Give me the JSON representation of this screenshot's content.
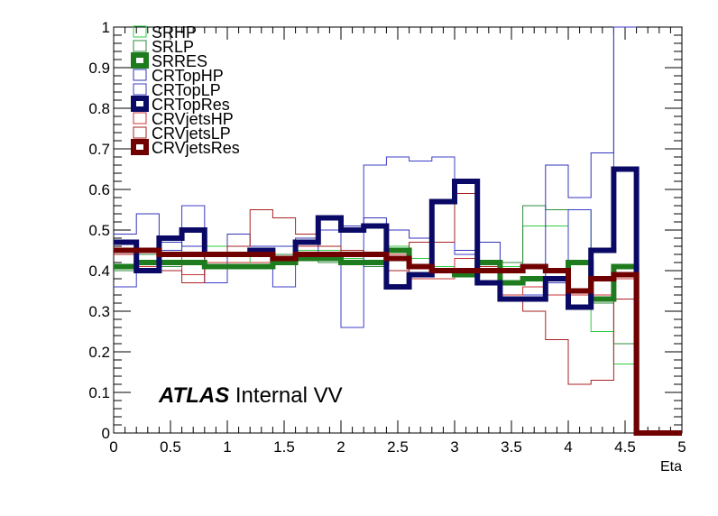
{
  "chart_data": {
    "type": "line",
    "xlabel": "Eta",
    "ylabel": "",
    "xlim": [
      0,
      5
    ],
    "ylim": [
      0,
      1
    ],
    "x_ticks": [
      "0",
      "0.5",
      "1",
      "1.5",
      "2",
      "2.5",
      "3",
      "3.5",
      "4",
      "4.5",
      "5"
    ],
    "y_ticks": [
      "0",
      "0.1",
      "0.2",
      "0.3",
      "0.4",
      "0.5",
      "0.6",
      "0.7",
      "0.8",
      "0.9",
      "1"
    ],
    "bin_edges": [
      0,
      0.2,
      0.4,
      0.6,
      0.8,
      1.0,
      1.2,
      1.4,
      1.6,
      1.8,
      2.0,
      2.2,
      2.4,
      2.6,
      2.8,
      3.0,
      3.2,
      3.4,
      3.6,
      3.8,
      4.0,
      4.2,
      4.4,
      4.6
    ],
    "legend_position": "top-left",
    "grid": false,
    "series": [
      {
        "name": "SRHP",
        "color": "#2ecc40",
        "width": 1,
        "values": [
          0.44,
          0.42,
          0.47,
          0.44,
          0.46,
          0.42,
          0.44,
          0.43,
          0.45,
          0.45,
          0.43,
          0.42,
          0.46,
          0.43,
          0.41,
          0.4,
          0.42,
          0.41,
          0.51,
          0.51,
          0.55,
          0.25,
          0.17
        ]
      },
      {
        "name": "SRLP",
        "color": "#2e8b3c",
        "width": 1,
        "values": [
          0.4,
          0.44,
          0.41,
          0.44,
          0.41,
          0.42,
          0.42,
          0.44,
          0.43,
          0.42,
          0.42,
          0.41,
          0.43,
          0.41,
          0.4,
          0.39,
          0.4,
          0.42,
          0.56,
          0.55,
          0.35,
          0.32,
          0.22
        ]
      },
      {
        "name": "SRRES",
        "color": "#1e7b1e",
        "width": 6,
        "values": [
          0.41,
          0.42,
          0.42,
          0.42,
          0.41,
          0.41,
          0.41,
          0.42,
          0.43,
          0.43,
          0.42,
          0.42,
          0.45,
          0.41,
          0.4,
          0.39,
          0.42,
          0.37,
          0.38,
          0.38,
          0.42,
          0.33,
          0.41
        ]
      },
      {
        "name": "CRTopHP",
        "color": "#3333bb",
        "width": 1,
        "values": [
          0.49,
          0.54,
          0.47,
          0.46,
          0.44,
          0.49,
          0.46,
          0.46,
          0.48,
          0.5,
          0.51,
          0.53,
          0.5,
          0.48,
          0.47,
          0.45,
          0.47,
          0.33,
          0.33,
          0.66,
          0.58,
          0.69,
          1.0
        ]
      },
      {
        "name": "CRTopLP",
        "color": "#3c3cc8",
        "width": 1,
        "values": [
          0.36,
          0.4,
          0.45,
          0.56,
          0.37,
          0.44,
          0.45,
          0.36,
          0.43,
          0.5,
          0.26,
          0.66,
          0.68,
          0.67,
          0.68,
          0.44,
          0.41,
          0.34,
          0.34,
          0.37,
          0.55,
          0.45,
          1.0
        ]
      },
      {
        "name": "CRTopRes",
        "color": "#0a0a66",
        "width": 6,
        "values": [
          0.47,
          0.4,
          0.48,
          0.5,
          0.44,
          0.44,
          0.45,
          0.43,
          0.47,
          0.53,
          0.5,
          0.51,
          0.36,
          0.39,
          0.57,
          0.62,
          0.37,
          0.33,
          0.33,
          0.38,
          0.31,
          0.45,
          0.65
        ]
      },
      {
        "name": "CRVjetsHP",
        "color": "#cc3333",
        "width": 1,
        "values": [
          0.45,
          0.41,
          0.42,
          0.39,
          0.42,
          0.42,
          0.42,
          0.42,
          0.46,
          0.46,
          0.42,
          0.42,
          0.44,
          0.38,
          0.38,
          0.43,
          0.41,
          0.34,
          0.36,
          0.34,
          0.34,
          0.34,
          0.38
        ]
      },
      {
        "name": "CRVjetsLP",
        "color": "#aa2222",
        "width": 1,
        "values": [
          0.44,
          0.42,
          0.4,
          0.37,
          0.44,
          0.46,
          0.55,
          0.53,
          0.49,
          0.46,
          0.45,
          0.44,
          0.4,
          0.47,
          0.47,
          0.59,
          0.41,
          0.33,
          0.3,
          0.23,
          0.12,
          0.13,
          0.33
        ]
      },
      {
        "name": "CRVjetsRes",
        "color": "#700000",
        "width": 6,
        "values": [
          0.45,
          0.45,
          0.44,
          0.44,
          0.44,
          0.44,
          0.44,
          0.43,
          0.44,
          0.44,
          0.44,
          0.44,
          0.43,
          0.41,
          0.4,
          0.4,
          0.4,
          0.4,
          0.41,
          0.4,
          0.35,
          0.38,
          0.39
        ]
      }
    ],
    "annotation": {
      "bold": "ATLAS",
      "rest": " Internal VV"
    }
  }
}
